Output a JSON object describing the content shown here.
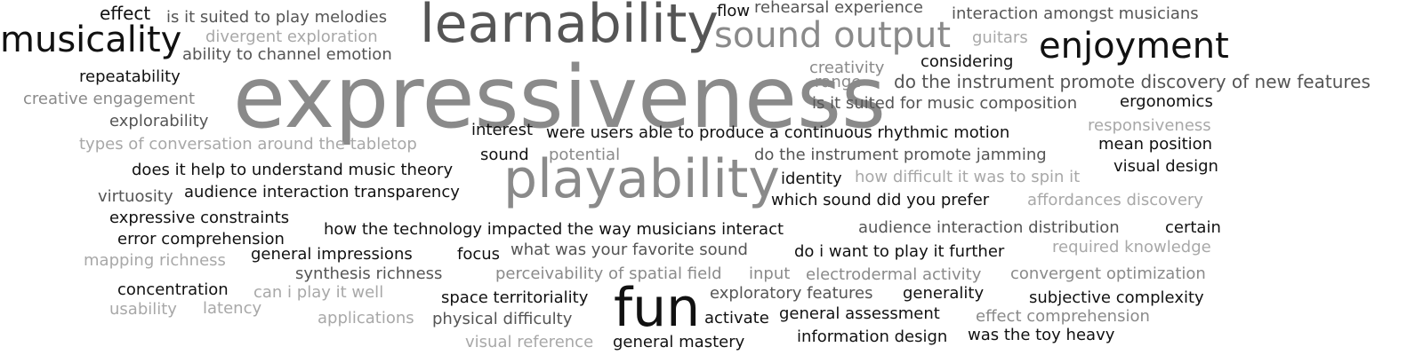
{
  "words": [
    "effect",
    "is it suited to play melodies",
    "learnability",
    "flow",
    "rehearsal experience",
    "interaction amongst musicians",
    "musicality",
    "divergent exploration",
    "sound output",
    "guitars",
    "enjoyment",
    "ability to channel emotion",
    "creativity",
    "considering",
    "repeatability",
    "range",
    "do the instrument promote discovery of new features",
    "expressiveness",
    "creative engagement",
    "is it suited for music composition",
    "ergonomics",
    "explorability",
    "responsiveness",
    "interest",
    "were users able to produce a continuous rhythmic motion",
    "mean position",
    "types of conversation around the tabletop",
    "sound",
    "potential",
    "do the instrument promote jamming",
    "does it help to understand music theory",
    "identity",
    "how difficult it was to spin it",
    "visual design",
    "playability",
    "virtuosity",
    "audience interaction transparency",
    "which sound did you prefer",
    "affordances discovery",
    "expressive constraints",
    "how the technology impacted the way musicians interact",
    "audience interaction distribution",
    "certain",
    "error comprehension",
    "what was your favorite sound",
    "required knowledge",
    "mapping richness",
    "general impressions",
    "focus",
    "do i want to play it further",
    "synthesis richness",
    "perceivability of spatial field",
    "input",
    "electrodermal activity",
    "convergent optimization",
    "concentration",
    "can i play it well",
    "space territoriality",
    "exploratory features",
    "generality",
    "subjective complexity",
    "usability",
    "latency",
    "fun",
    "activate",
    "general assessment",
    "effect comprehension",
    "applications",
    "physical difficulty",
    "visual reference",
    "general mastery",
    "information design",
    "was the toy heavy"
  ]
}
